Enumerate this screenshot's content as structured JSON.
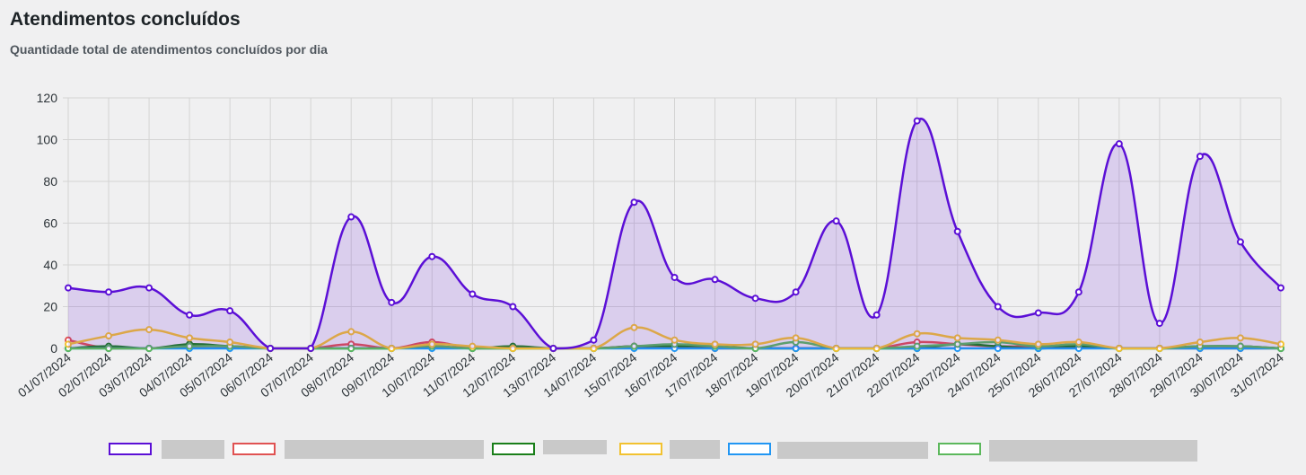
{
  "header": {
    "title": "Atendimentos concluídos",
    "subtitle": "Quantidade total de atendimentos concluídos por dia"
  },
  "chart_data": {
    "type": "line",
    "title": "Atendimentos concluídos",
    "subtitle": "Quantidade total de atendimentos concluídos por dia",
    "xlabel": "",
    "ylabel": "",
    "ylim": [
      0,
      120
    ],
    "yticks": [
      0,
      20,
      40,
      60,
      80,
      100,
      120
    ],
    "grid": true,
    "legend_position": "bottom",
    "categories": [
      "01/07/2024",
      "02/07/2024",
      "03/07/2024",
      "04/07/2024",
      "05/07/2024",
      "06/07/2024",
      "07/07/2024",
      "08/07/2024",
      "09/07/2024",
      "10/07/2024",
      "11/07/2024",
      "12/07/2024",
      "13/07/2024",
      "14/07/2024",
      "15/07/2024",
      "16/07/2024",
      "17/07/2024",
      "18/07/2024",
      "19/07/2024",
      "20/07/2024",
      "21/07/2024",
      "22/07/2024",
      "23/07/2024",
      "24/07/2024",
      "25/07/2024",
      "26/07/2024",
      "27/07/2024",
      "28/07/2024",
      "29/07/2024",
      "30/07/2024",
      "31/07/2024"
    ],
    "series": [
      {
        "color": "#5b0fd6",
        "fill": "rgba(91,15,214,0.15)",
        "values": [
          29,
          27,
          29,
          16,
          18,
          0,
          0,
          63,
          22,
          44,
          26,
          20,
          0,
          4,
          70,
          34,
          33,
          24,
          27,
          61,
          16,
          109,
          56,
          20,
          17,
          27,
          98,
          12,
          92,
          51,
          29
        ]
      },
      {
        "color": "#f2c230",
        "values": [
          2,
          6,
          9,
          5,
          3,
          0,
          0,
          8,
          0,
          2,
          1,
          0,
          0,
          0,
          10,
          4,
          2,
          2,
          5,
          0,
          0,
          7,
          5,
          4,
          2,
          3,
          0,
          0,
          3,
          5,
          2
        ]
      },
      {
        "color": "#5cb85c",
        "values": [
          0,
          0,
          0,
          1,
          1,
          0,
          0,
          0,
          0,
          1,
          0,
          0,
          0,
          0,
          1,
          2,
          1,
          0,
          3,
          0,
          0,
          1,
          2,
          3,
          1,
          2,
          0,
          0,
          1,
          1,
          0
        ]
      },
      {
        "color": "#2196f3",
        "values": [
          0,
          0,
          0,
          0,
          0,
          0,
          0,
          0,
          0,
          0,
          0,
          0,
          0,
          0,
          0,
          0,
          0,
          0,
          0,
          0,
          0,
          0,
          0,
          0,
          0,
          0,
          0,
          0,
          0,
          0,
          0
        ]
      },
      {
        "color": "#1a7f1a",
        "values": [
          0,
          1,
          0,
          2,
          1,
          0,
          0,
          0,
          0,
          1,
          0,
          1,
          0,
          0,
          1,
          1,
          1,
          0,
          0,
          0,
          0,
          0,
          2,
          1,
          0,
          1,
          0,
          0,
          1,
          1,
          0
        ]
      },
      {
        "color": "#e05252",
        "values": [
          4,
          0,
          0,
          1,
          1,
          0,
          0,
          2,
          0,
          3,
          0,
          0,
          0,
          0,
          1,
          1,
          0,
          0,
          0,
          0,
          0,
          3,
          2,
          1,
          1,
          1,
          0,
          0,
          0,
          0,
          0
        ]
      }
    ]
  },
  "legend": [
    {
      "color": "#5b0fd6"
    },
    {
      "color": "#e05252"
    },
    {
      "color": "#1a7f1a"
    },
    {
      "color": "#f2c230"
    },
    {
      "color": "#2196f3"
    },
    {
      "color": "#5cb85c"
    }
  ]
}
